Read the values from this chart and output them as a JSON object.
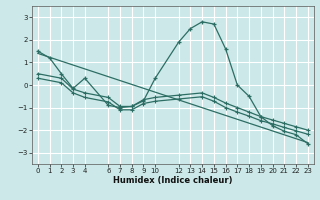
{
  "xlabel": "Humidex (Indice chaleur)",
  "bg_color": "#cce8e8",
  "grid_color": "#b0d8d8",
  "line_color": "#2d6e64",
  "xlim": [
    -0.5,
    23.5
  ],
  "ylim": [
    -3.5,
    3.5
  ],
  "yticks": [
    -3,
    -2,
    -1,
    0,
    1,
    2,
    3
  ],
  "xticks": [
    0,
    1,
    2,
    3,
    4,
    6,
    7,
    8,
    9,
    10,
    12,
    13,
    14,
    15,
    16,
    17,
    18,
    19,
    20,
    21,
    22,
    23
  ],
  "main_curve": {
    "x": [
      0,
      1,
      2,
      3,
      4,
      6,
      7,
      8,
      9,
      10,
      12,
      13,
      14,
      15,
      16,
      17,
      18,
      19,
      20,
      21,
      22,
      23
    ],
    "y": [
      1.5,
      1.2,
      0.5,
      -0.15,
      0.3,
      -0.9,
      -1.0,
      -0.95,
      -0.7,
      0.3,
      1.9,
      2.5,
      2.8,
      2.7,
      1.6,
      0.0,
      -0.5,
      -1.4,
      -1.8,
      -2.05,
      -2.2,
      -2.6
    ]
  },
  "line1": {
    "x": [
      0,
      23
    ],
    "y": [
      1.4,
      -2.55
    ]
  },
  "line2": {
    "x": [
      0,
      2,
      3,
      4,
      6,
      7,
      8,
      9,
      10,
      12,
      14,
      15,
      16,
      17,
      18,
      19,
      20,
      21,
      22,
      23
    ],
    "y": [
      0.5,
      0.3,
      -0.18,
      -0.35,
      -0.55,
      -0.95,
      -0.95,
      -0.65,
      -0.55,
      -0.45,
      -0.35,
      -0.55,
      -0.8,
      -1.0,
      -1.2,
      -1.4,
      -1.55,
      -1.7,
      -1.85,
      -2.0
    ]
  },
  "line3": {
    "x": [
      0,
      2,
      3,
      4,
      6,
      7,
      8,
      9,
      10,
      12,
      14,
      15,
      16,
      17,
      18,
      19,
      20,
      21,
      22,
      23
    ],
    "y": [
      0.3,
      0.1,
      -0.35,
      -0.55,
      -0.75,
      -1.1,
      -1.1,
      -0.82,
      -0.72,
      -0.62,
      -0.52,
      -0.72,
      -1.0,
      -1.2,
      -1.38,
      -1.58,
      -1.72,
      -1.88,
      -2.03,
      -2.18
    ]
  }
}
